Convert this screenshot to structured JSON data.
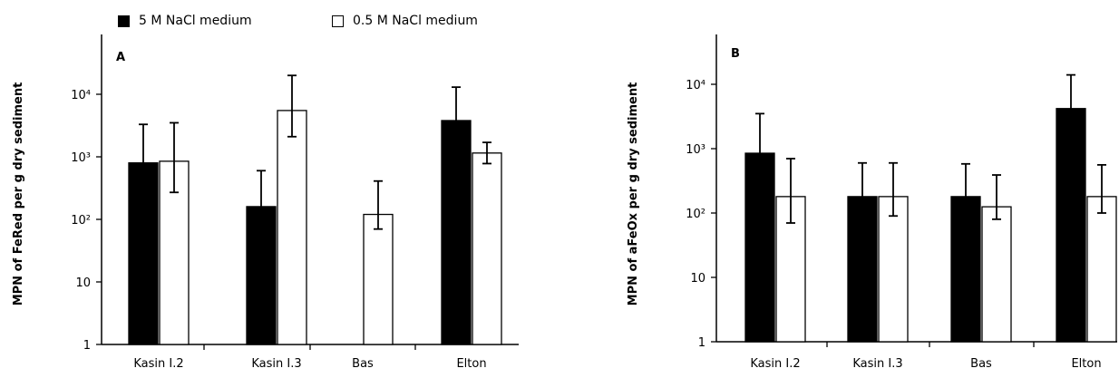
{
  "legend": [
    {
      "label": "5 M NaCl medium",
      "fill": "#000000"
    },
    {
      "label": "0.5 M NaCl medium",
      "fill": "#ffffff"
    }
  ],
  "chart_data": [
    {
      "type": "bar",
      "panel_label": "A",
      "ylabel": "MPN of FeRed per g dry sediment",
      "yscale": "log",
      "ylim": [
        1,
        50000
      ],
      "yticks": [
        {
          "value": 1,
          "label": "1"
        },
        {
          "value": 10,
          "label": "10"
        },
        {
          "value": 100,
          "label": "10²"
        },
        {
          "value": 1000,
          "label": "10³"
        },
        {
          "value": 10000,
          "label": "10⁴"
        }
      ],
      "categories": [
        "Kasin I.2",
        "Kasin I.3",
        "Bas",
        "Elton"
      ],
      "series": [
        {
          "name": "5 M NaCl medium",
          "color": "#000000",
          "values": [
            800,
            160,
            null,
            3800
          ],
          "err_low": [
            300,
            45,
            null,
            1100
          ],
          "err_high": [
            3300,
            600,
            null,
            13000
          ]
        },
        {
          "name": "0.5 M NaCl medium",
          "color": "#ffffff",
          "values": [
            850,
            5500,
            120,
            1150
          ],
          "err_low": [
            270,
            2100,
            70,
            780
          ],
          "err_high": [
            3500,
            20000,
            410,
            1700
          ]
        }
      ],
      "grid": false
    },
    {
      "type": "bar",
      "panel_label": "B",
      "ylabel": "MPN of aFeOx per g dry sediment",
      "yscale": "log",
      "ylim": [
        1,
        50000
      ],
      "yticks": [
        {
          "value": 1,
          "label": "1"
        },
        {
          "value": 10,
          "label": "10"
        },
        {
          "value": 100,
          "label": "10²"
        },
        {
          "value": 1000,
          "label": "10³"
        },
        {
          "value": 10000,
          "label": "10⁴"
        }
      ],
      "categories": [
        "Kasin I.2",
        "Kasin I.3",
        "Bas",
        "Elton"
      ],
      "series": [
        {
          "name": "5 M NaCl medium",
          "color": "#000000",
          "values": [
            850,
            180,
            180,
            4200
          ],
          "err_low": [
            340,
            70,
            70,
            1500
          ],
          "err_high": [
            3500,
            600,
            580,
            14000
          ]
        },
        {
          "name": "0.5 M NaCl medium",
          "color": "#ffffff",
          "values": [
            180,
            180,
            125,
            180
          ],
          "err_low": [
            70,
            90,
            80,
            100
          ],
          "err_high": [
            700,
            600,
            390,
            560
          ]
        }
      ],
      "grid": false
    }
  ]
}
